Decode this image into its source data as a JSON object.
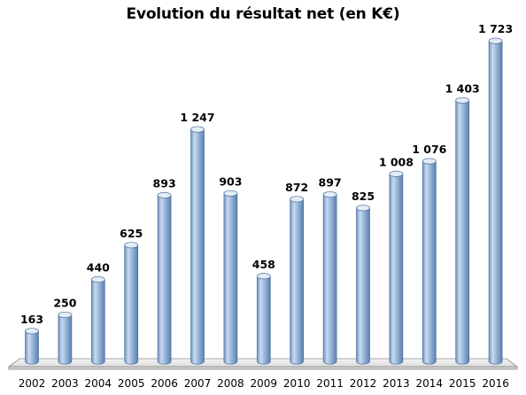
{
  "chart_data": {
    "type": "bar",
    "title": "Evolution du résultat net (en K€)",
    "xlabel": "",
    "ylabel": "",
    "categories": [
      "2002",
      "2003",
      "2004",
      "2005",
      "2006",
      "2007",
      "2008",
      "2009",
      "2010",
      "2011",
      "2012",
      "2013",
      "2014",
      "2015",
      "2016"
    ],
    "values": [
      163,
      250,
      440,
      625,
      893,
      1247,
      903,
      458,
      872,
      897,
      825,
      1008,
      1076,
      1403,
      1723
    ],
    "value_labels": [
      "163",
      "250",
      "440",
      "625",
      "893",
      "1 247",
      "903",
      "458",
      "872",
      "897",
      "825",
      "1 008",
      "1 076",
      "1 403",
      "1 723"
    ],
    "ylim": [
      0,
      1800
    ],
    "grid": false,
    "legend": "none",
    "bar_style": "3d-cylinder",
    "colors": {
      "bar_light": "#c9d9ee",
      "bar_mid": "#95b3d7",
      "bar_dark": "#5f84b3",
      "bar_top": "#e3ecf7",
      "bar_outline": "#4f729c",
      "floor_top": "#f2f2f2",
      "floor_edge": "#8c8c8c"
    }
  }
}
